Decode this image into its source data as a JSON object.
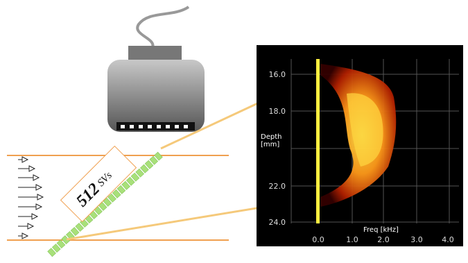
{
  "probe_label": {
    "count": "512",
    "unit": "SVs"
  },
  "spectrogram": {
    "y_label": "Depth [mm]",
    "x_label": "Freq [kHz]",
    "y_ticks": [
      "16.0",
      "18.0",
      "22.0",
      "24.0"
    ],
    "x_ticks": [
      "0.0",
      "1.0",
      "2.0",
      "3.0",
      "4.0"
    ]
  }
}
